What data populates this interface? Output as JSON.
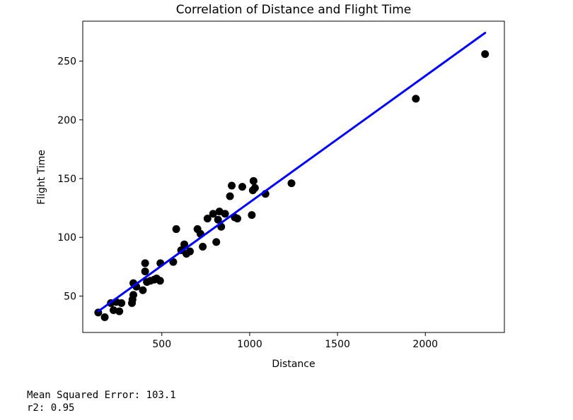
{
  "chart_data": {
    "type": "scatter",
    "title": "Correlation of Distance and Flight Time",
    "xlabel": "Distance",
    "ylabel": "Flight Time",
    "xlim": [
      50,
      2450
    ],
    "ylim": [
      19,
      284
    ],
    "xticks": [
      500,
      1000,
      1500,
      2000
    ],
    "yticks": [
      50,
      100,
      150,
      200,
      250
    ],
    "grid": false,
    "point_color": "#000000",
    "line_color": "#0000ff",
    "points": [
      {
        "x": 138,
        "y": 36
      },
      {
        "x": 175,
        "y": 32
      },
      {
        "x": 210,
        "y": 44
      },
      {
        "x": 225,
        "y": 38
      },
      {
        "x": 240,
        "y": 45
      },
      {
        "x": 258,
        "y": 37
      },
      {
        "x": 270,
        "y": 44
      },
      {
        "x": 330,
        "y": 44
      },
      {
        "x": 333,
        "y": 47
      },
      {
        "x": 338,
        "y": 51
      },
      {
        "x": 338,
        "y": 61
      },
      {
        "x": 355,
        "y": 58
      },
      {
        "x": 392,
        "y": 55
      },
      {
        "x": 405,
        "y": 71
      },
      {
        "x": 405,
        "y": 78
      },
      {
        "x": 415,
        "y": 62
      },
      {
        "x": 435,
        "y": 63
      },
      {
        "x": 457,
        "y": 64
      },
      {
        "x": 470,
        "y": 65
      },
      {
        "x": 490,
        "y": 63
      },
      {
        "x": 492,
        "y": 78
      },
      {
        "x": 565,
        "y": 79
      },
      {
        "x": 582,
        "y": 107
      },
      {
        "x": 610,
        "y": 89
      },
      {
        "x": 628,
        "y": 94
      },
      {
        "x": 640,
        "y": 86
      },
      {
        "x": 660,
        "y": 88
      },
      {
        "x": 703,
        "y": 107
      },
      {
        "x": 720,
        "y": 103
      },
      {
        "x": 733,
        "y": 92
      },
      {
        "x": 760,
        "y": 116
      },
      {
        "x": 792,
        "y": 120
      },
      {
        "x": 810,
        "y": 96
      },
      {
        "x": 820,
        "y": 115
      },
      {
        "x": 828,
        "y": 122
      },
      {
        "x": 838,
        "y": 109
      },
      {
        "x": 860,
        "y": 120
      },
      {
        "x": 888,
        "y": 135
      },
      {
        "x": 898,
        "y": 144
      },
      {
        "x": 915,
        "y": 117
      },
      {
        "x": 930,
        "y": 116
      },
      {
        "x": 958,
        "y": 143
      },
      {
        "x": 1012,
        "y": 119
      },
      {
        "x": 1018,
        "y": 140
      },
      {
        "x": 1022,
        "y": 148
      },
      {
        "x": 1030,
        "y": 142
      },
      {
        "x": 1090,
        "y": 137
      },
      {
        "x": 1238,
        "y": 146
      },
      {
        "x": 1946,
        "y": 218
      },
      {
        "x": 2340,
        "y": 256
      }
    ],
    "regression_line": {
      "x": [
        138,
        2340
      ],
      "y": [
        37,
        274
      ]
    }
  },
  "output": {
    "mse_line": "Mean Squared Error: 103.1",
    "r2_line": "r2: 0.95"
  }
}
